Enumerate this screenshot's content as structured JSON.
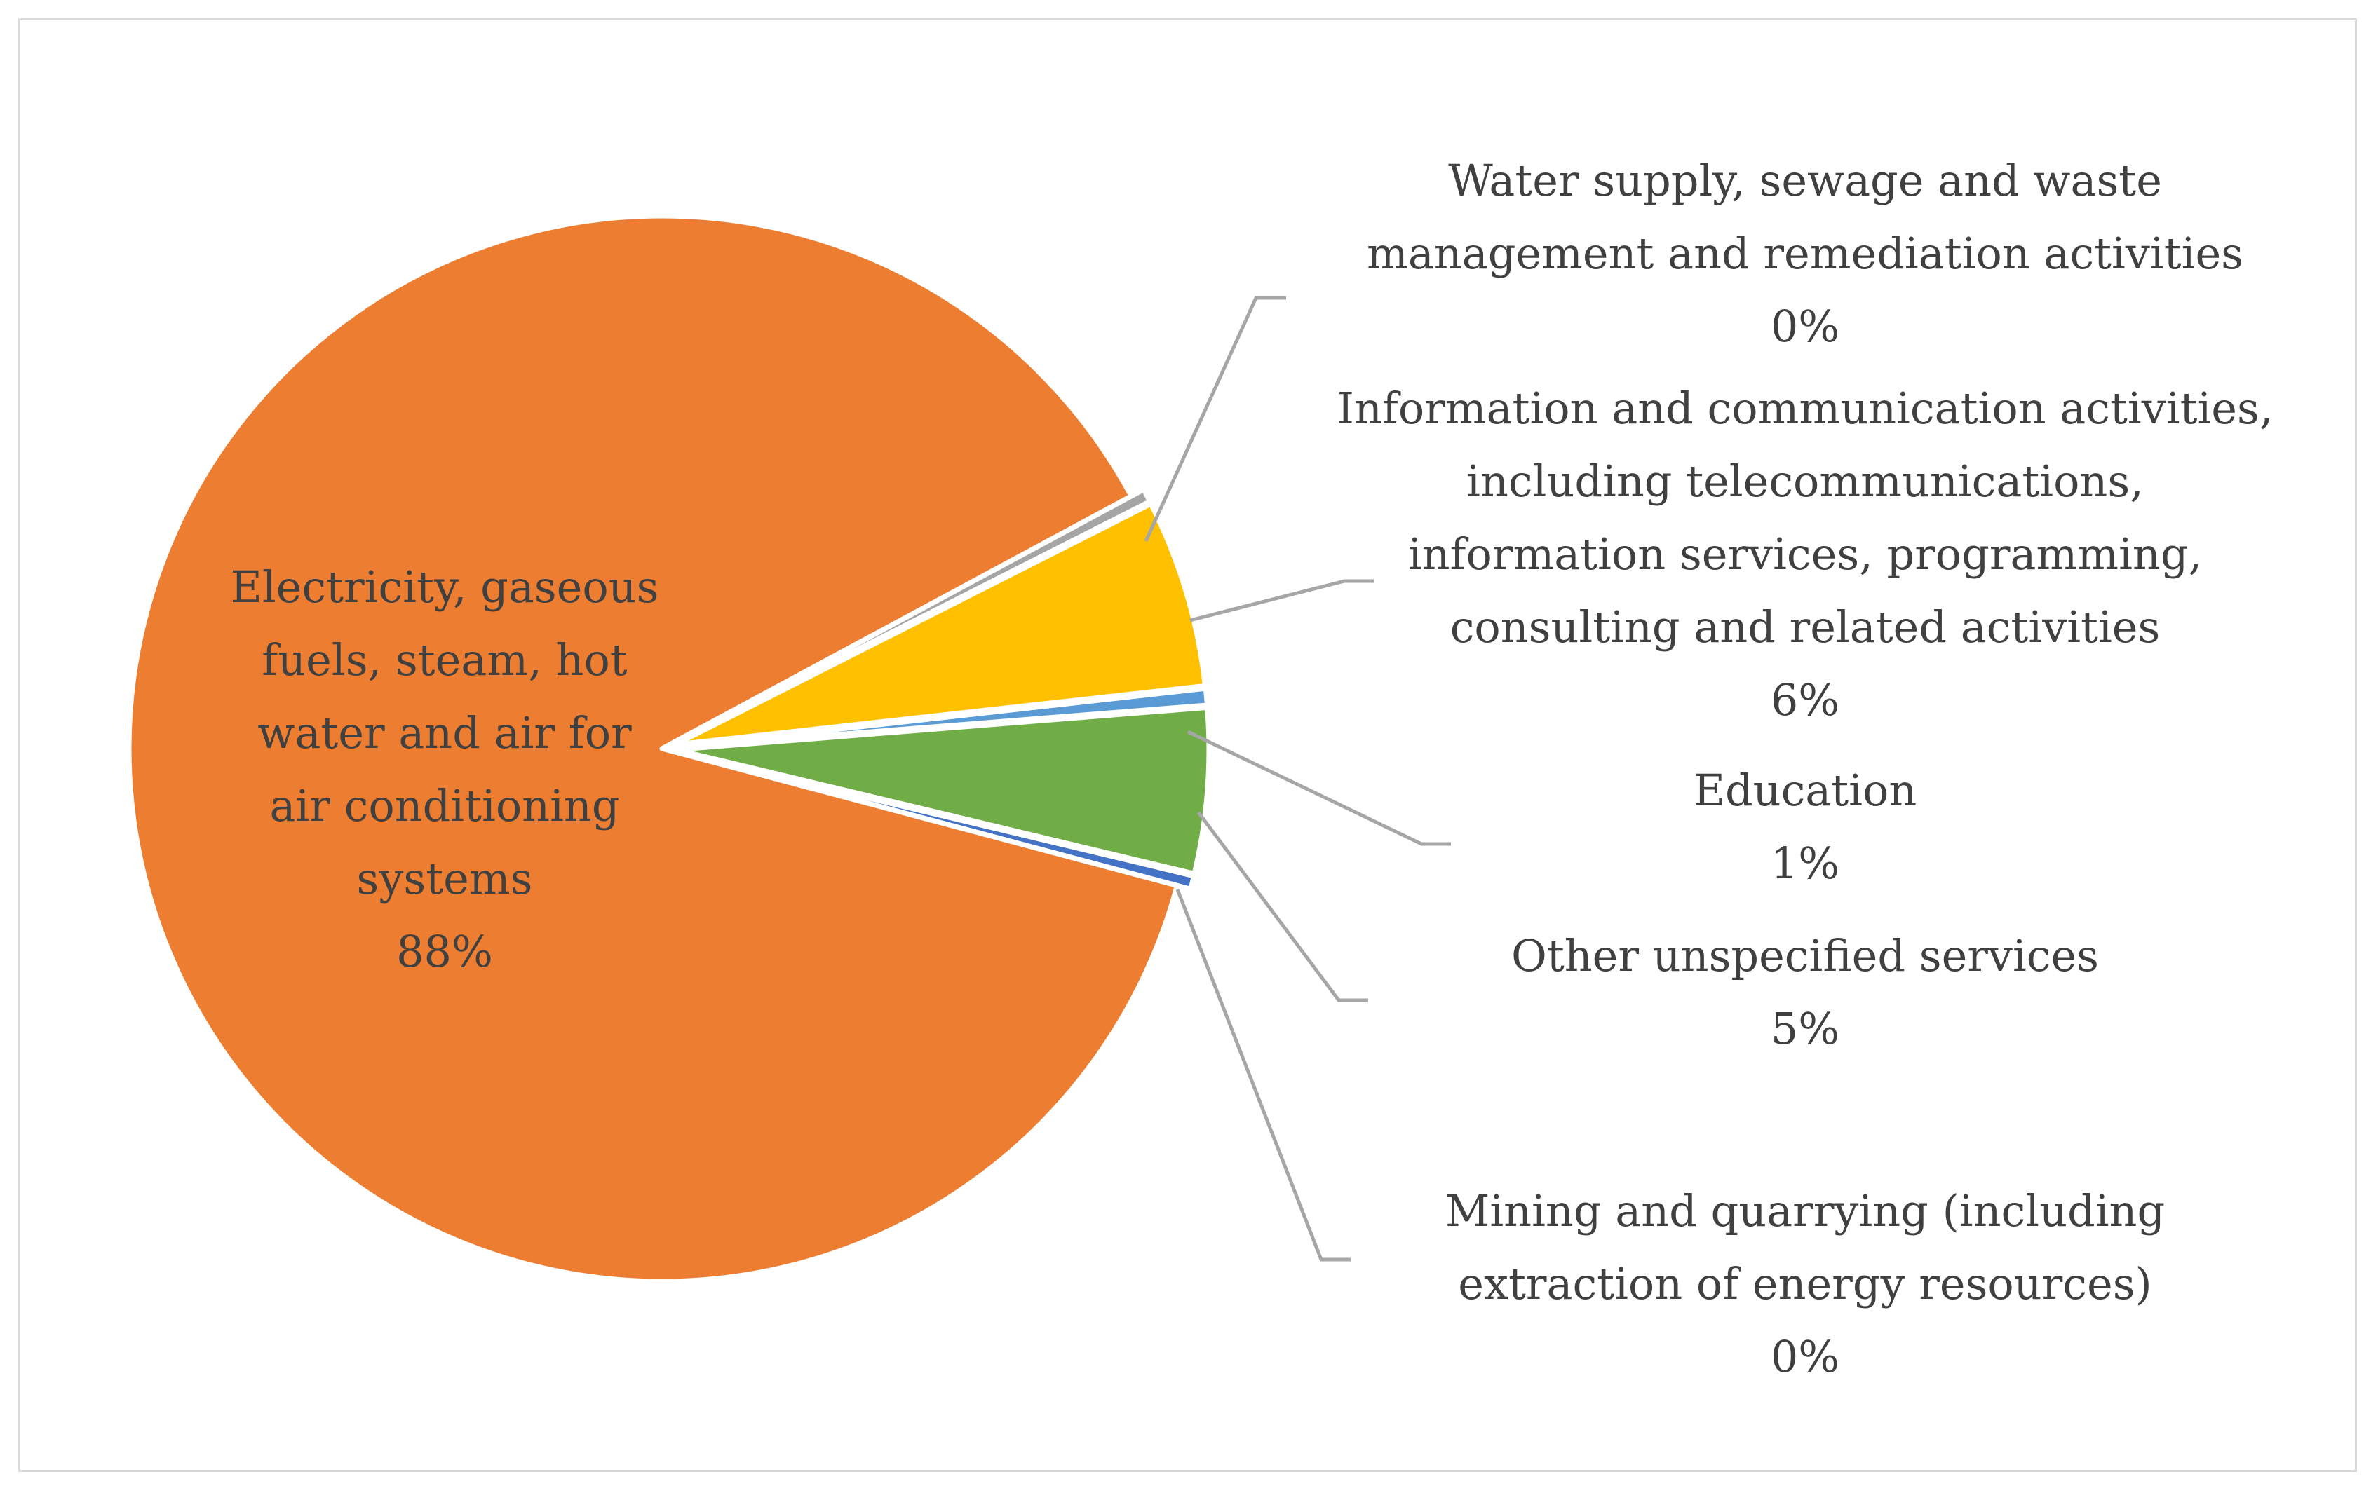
{
  "chart_data": {
    "type": "pie",
    "title": "",
    "slices": [
      {
        "key": "water",
        "label_lines": [
          "Water supply, sewage and waste",
          "management and remediation activities"
        ],
        "percent_label": "0%",
        "value": 0.4,
        "color": "#a5a5a5"
      },
      {
        "key": "ict",
        "label_lines": [
          "Information and communication activities,",
          "including telecommunications,",
          "information services, programming,",
          "consulting and related activities"
        ],
        "percent_label": "6%",
        "value": 5.7,
        "color": "#ffc000"
      },
      {
        "key": "education",
        "label_lines": [
          "Education"
        ],
        "percent_label": "1%",
        "value": 0.5,
        "color": "#5b9bd5"
      },
      {
        "key": "other",
        "label_lines": [
          "Other unspecified services"
        ],
        "percent_label": "5%",
        "value": 5.0,
        "color": "#70ad47"
      },
      {
        "key": "mining",
        "label_lines": [
          "Mining and quarrying (including",
          "extraction of energy resources)"
        ],
        "percent_label": "0%",
        "value": 0.4,
        "color": "#4472c4"
      },
      {
        "key": "electricity",
        "label_lines": [
          "Electricity, gaseous",
          "fuels, steam, hot",
          "water and air for",
          "air conditioning",
          "systems"
        ],
        "percent_label": "88%",
        "value": 88.0,
        "color": "#ed7d31"
      }
    ],
    "leader_line_color": "#a6a6a6",
    "legend": "none"
  }
}
